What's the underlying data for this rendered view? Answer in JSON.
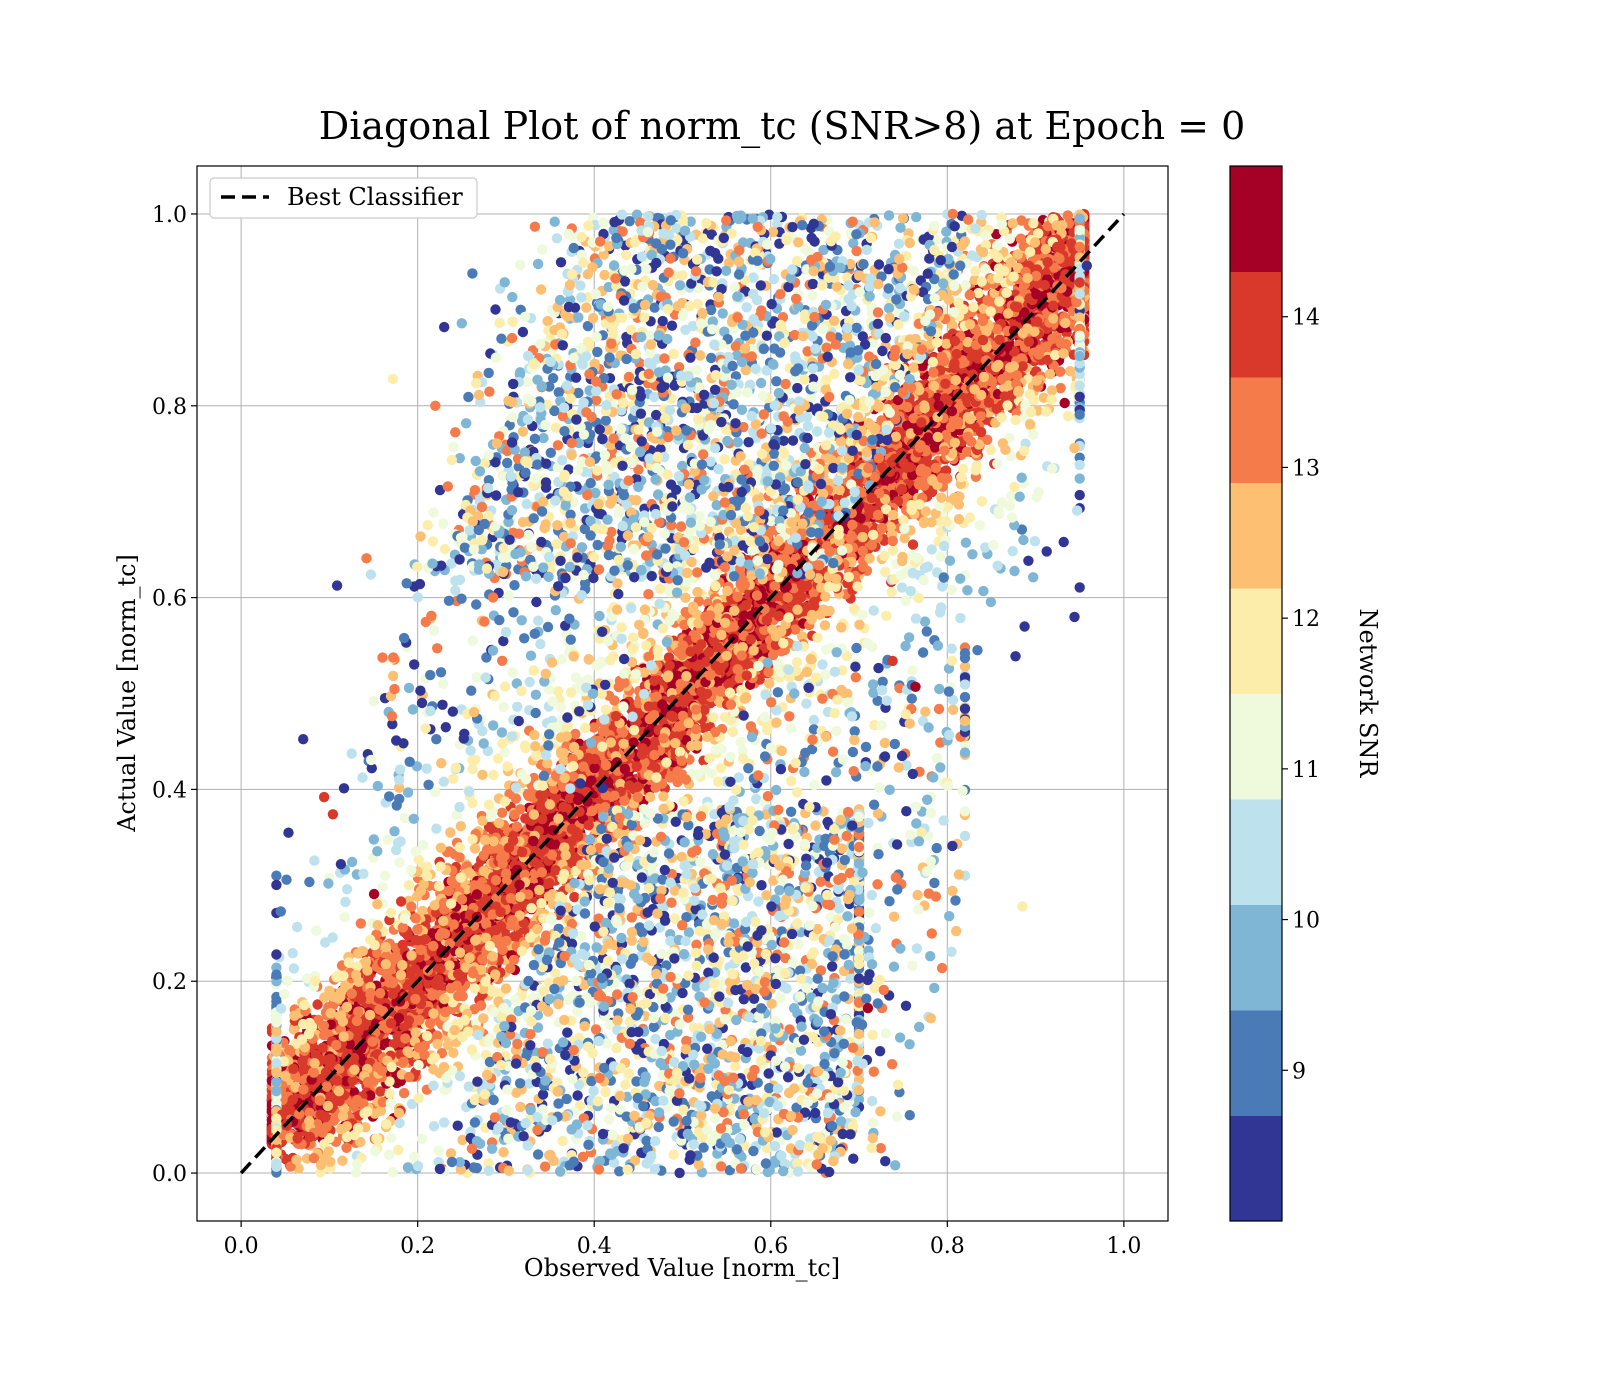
{
  "chart_data": {
    "type": "scatter",
    "title": "Diagonal Plot of norm_tc (SNR>8) at Epoch = 0",
    "xlabel": "Observed Value [norm_tc]",
    "ylabel": "Actual Value [norm_tc]",
    "xlim": [
      -0.05,
      1.05
    ],
    "ylim": [
      -0.05,
      1.05
    ],
    "xticks": [
      "0.0",
      "0.2",
      "0.4",
      "0.6",
      "0.8",
      "1.0"
    ],
    "yticks": [
      "0.0",
      "0.2",
      "0.4",
      "0.6",
      "0.8",
      "1.0"
    ],
    "grid": true,
    "legend": {
      "placement": "upper-left",
      "entries": [
        "Best Classifier"
      ]
    },
    "reference_line": {
      "name": "Best Classifier",
      "style": "dashed",
      "color": "#000000",
      "x": [
        0,
        1
      ],
      "y": [
        0,
        1
      ]
    },
    "colorbar": {
      "label": "Network SNR",
      "range": [
        8,
        15
      ],
      "ticks": [
        "9",
        "10",
        "11",
        "12",
        "13",
        "14"
      ],
      "bins": [
        {
          "from": 8.0,
          "to": 8.7,
          "color": "#313695"
        },
        {
          "from": 8.7,
          "to": 9.4,
          "color": "#4a7bb7"
        },
        {
          "from": 9.4,
          "to": 10.1,
          "color": "#7fb6d6"
        },
        {
          "from": 10.1,
          "to": 10.8,
          "color": "#bde2ee"
        },
        {
          "from": 10.8,
          "to": 11.5,
          "color": "#eff9db"
        },
        {
          "from": 11.5,
          "to": 12.2,
          "color": "#fdedaa"
        },
        {
          "from": 12.2,
          "to": 12.9,
          "color": "#fdbf71"
        },
        {
          "from": 12.9,
          "to": 13.6,
          "color": "#f57b4a"
        },
        {
          "from": 13.6,
          "to": 14.3,
          "color": "#d8392b"
        },
        {
          "from": 14.3,
          "to": 15.0,
          "color": "#a50026"
        }
      ]
    },
    "series": [
      {
        "points": [
          [
            0.885,
            0.278
          ],
          [
            0.792,
            0.423
          ],
          [
            0.147,
            0.624
          ],
          [
            0.142,
            0.641
          ],
          [
            0.172,
            0.828
          ],
          [
            0.652,
            0.009
          ],
          [
            0.704,
            0.114
          ],
          [
            0.71,
            0.172
          ],
          [
            0.728,
            0.191
          ],
          [
            0.692,
            0.255
          ],
          [
            0.738,
            0.534
          ],
          [
            0.764,
            0.507
          ],
          [
            0.775,
            0.481
          ],
          [
            0.723,
            0.402
          ],
          [
            0.745,
            0.423
          ],
          [
            0.22,
            0.8
          ],
          [
            0.23,
            0.882
          ],
          [
            0.25,
            0.886
          ],
          [
            0.262,
            0.938
          ],
          [
            0.958,
            0.946
          ],
          [
            0.944,
            0.756
          ],
          [
            0.796,
            0.621
          ],
          [
            0.656,
            0.036
          ],
          [
            0.612,
            0.018
          ],
          [
            0.094,
            0.392
          ],
          [
            0.104,
            0.374
          ],
          [
            0.113,
            0.322
          ],
          [
            0.12,
            0.296
          ]
        ]
      }
    ]
  }
}
